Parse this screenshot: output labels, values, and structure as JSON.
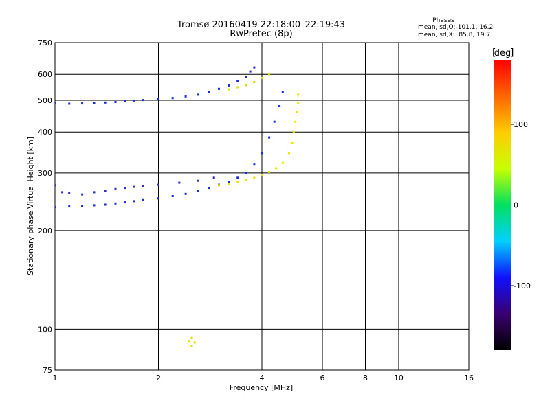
{
  "chart_data": {
    "type": "scatter",
    "title": "Tromsø 20160419 22:18:00–22:19:43",
    "subtitle": "RwPretec (8p)",
    "phases": {
      "heading": "Phases",
      "line_o": "mean, sd,O:-101.1, 16.2",
      "line_x": "mean, sd,X:  85.8, 19.7"
    },
    "xlabel": "Frequency [MHz]",
    "ylabel": "Stationary phase Virtual Height [km]",
    "x_scale": "log",
    "y_scale": "log",
    "xlim": [
      1,
      16
    ],
    "ylim": [
      75,
      750
    ],
    "x_ticks": [
      1,
      2,
      4,
      6,
      8,
      10,
      16
    ],
    "x_gridlines": [
      2,
      4,
      6,
      8,
      10
    ],
    "y_ticks": [
      75,
      100,
      200,
      300,
      400,
      500,
      600,
      750
    ],
    "y_gridlines": [
      100,
      200,
      300,
      400,
      500,
      600
    ],
    "grid": true,
    "colorbar": {
      "label": "deg",
      "range": [
        -180,
        180
      ],
      "tick_labels": [
        "100",
        "0",
        "-100"
      ],
      "tick_values": [
        100,
        0,
        -100
      ],
      "colors": [
        "#000000",
        "#3a0070",
        "#1010ff",
        "#00d0ff",
        "#00e060",
        "#c8ff00",
        "#ffcc00",
        "#ff6600",
        "#ff0000"
      ]
    },
    "series": [
      {
        "phase": -105,
        "color": "#1a2be0",
        "points": [
          [
            1.0,
            490
          ],
          [
            1.1,
            488
          ],
          [
            1.2,
            489
          ],
          [
            1.3,
            490
          ],
          [
            1.4,
            492
          ],
          [
            1.5,
            494
          ],
          [
            1.6,
            497
          ],
          [
            1.7,
            499
          ],
          [
            1.8,
            501
          ],
          [
            2.0,
            504
          ],
          [
            2.2,
            508
          ],
          [
            2.4,
            514
          ],
          [
            2.6,
            520
          ],
          [
            2.8,
            530
          ],
          [
            3.0,
            542
          ],
          [
            3.2,
            555
          ],
          [
            3.4,
            572
          ],
          [
            3.6,
            590
          ],
          [
            3.7,
            612
          ],
          [
            3.8,
            630
          ]
        ]
      },
      {
        "phase": -110,
        "color": "#1a2be0",
        "points": [
          [
            1.0,
            236
          ],
          [
            1.1,
            237
          ],
          [
            1.2,
            238
          ],
          [
            1.3,
            239
          ],
          [
            1.4,
            240
          ],
          [
            1.5,
            242
          ],
          [
            1.6,
            244
          ],
          [
            1.7,
            246
          ],
          [
            1.8,
            248
          ],
          [
            2.0,
            251
          ],
          [
            2.2,
            255
          ],
          [
            2.4,
            259
          ],
          [
            2.6,
            264
          ],
          [
            2.8,
            270
          ],
          [
            3.0,
            276
          ],
          [
            3.2,
            282
          ],
          [
            3.4,
            290
          ],
          [
            3.6,
            300
          ],
          [
            3.8,
            318
          ],
          [
            4.0,
            345
          ],
          [
            4.2,
            385
          ],
          [
            4.35,
            430
          ],
          [
            4.5,
            480
          ],
          [
            4.6,
            530
          ]
        ]
      },
      {
        "phase": -100,
        "color": "#3030c8",
        "points": [
          [
            1.0,
            275
          ],
          [
            1.05,
            262
          ],
          [
            1.1,
            260
          ],
          [
            1.2,
            258
          ],
          [
            1.3,
            262
          ],
          [
            1.4,
            265
          ],
          [
            1.5,
            268
          ],
          [
            1.6,
            270
          ],
          [
            1.7,
            272
          ],
          [
            1.8,
            274
          ],
          [
            2.0,
            276
          ],
          [
            2.3,
            280
          ],
          [
            2.6,
            284
          ],
          [
            2.9,
            290
          ]
        ]
      },
      {
        "phase": 95,
        "color": "#e8e800",
        "points": [
          [
            3.0,
            275
          ],
          [
            3.2,
            278
          ],
          [
            3.4,
            282
          ],
          [
            3.6,
            286
          ],
          [
            3.8,
            290
          ],
          [
            4.0,
            296
          ],
          [
            4.2,
            302
          ],
          [
            4.4,
            310
          ],
          [
            4.6,
            322
          ],
          [
            4.8,
            345
          ],
          [
            4.9,
            370
          ],
          [
            4.95,
            400
          ],
          [
            5.0,
            430
          ],
          [
            5.05,
            460
          ],
          [
            5.1,
            490
          ],
          [
            5.1,
            520
          ]
        ]
      },
      {
        "phase": 90,
        "color": "#d8e000",
        "points": [
          [
            3.2,
            540
          ],
          [
            3.4,
            548
          ],
          [
            3.6,
            556
          ],
          [
            3.8,
            568
          ],
          [
            4.0,
            585
          ],
          [
            4.2,
            600
          ]
        ]
      },
      {
        "phase": 100,
        "color": "#e0e000",
        "points": [
          [
            2.45,
            92
          ],
          [
            2.5,
            94
          ],
          [
            2.55,
            91
          ],
          [
            2.5,
            89
          ]
        ]
      }
    ]
  }
}
